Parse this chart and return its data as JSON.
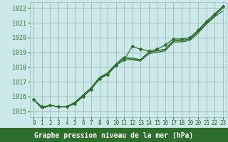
{
  "title": "Graphe pression niveau de la mer (hPa)",
  "bg_color": "#cce8e8",
  "plot_bg_color": "#cce8e8",
  "bottom_bar_color": "#2d6e2d",
  "grid_color": "#99bbbb",
  "line_color": "#2d6e2d",
  "xlim": [
    -0.5,
    23.5
  ],
  "ylim": [
    1014.6,
    1022.4
  ],
  "yticks": [
    1015,
    1016,
    1017,
    1018,
    1019,
    1020,
    1021,
    1022
  ],
  "xticks": [
    0,
    1,
    2,
    3,
    4,
    5,
    6,
    7,
    8,
    9,
    10,
    11,
    12,
    13,
    14,
    15,
    16,
    17,
    18,
    19,
    20,
    21,
    22,
    23
  ],
  "series": [
    [
      1015.8,
      1015.3,
      1015.4,
      1015.3,
      1015.3,
      1015.5,
      1016.0,
      1016.5,
      1017.2,
      1017.5,
      1018.1,
      1018.5,
      1019.4,
      1019.2,
      1019.1,
      1019.2,
      1019.5,
      1019.9,
      1019.9,
      1020.0,
      1020.5,
      1021.1,
      1021.6,
      1022.1
    ],
    [
      1015.8,
      1015.2,
      1015.4,
      1015.3,
      1015.3,
      1015.6,
      1016.0,
      1016.5,
      1017.2,
      1017.6,
      1018.2,
      1018.7,
      1018.5,
      1018.5,
      1019.0,
      1019.1,
      1019.2,
      1019.8,
      1019.8,
      1019.9,
      1020.4,
      1021.0,
      1021.5,
      1022.0
    ],
    [
      1015.8,
      1015.2,
      1015.4,
      1015.3,
      1015.3,
      1015.6,
      1016.1,
      1016.6,
      1017.2,
      1017.5,
      1018.1,
      1018.5,
      1018.5,
      1018.4,
      1018.9,
      1019.0,
      1019.1,
      1019.7,
      1019.7,
      1019.8,
      1020.3,
      1020.9,
      1021.4,
      1021.8
    ],
    [
      1015.8,
      1015.2,
      1015.4,
      1015.3,
      1015.3,
      1015.6,
      1016.1,
      1016.6,
      1017.3,
      1017.6,
      1018.2,
      1018.6,
      1018.6,
      1018.5,
      1019.0,
      1019.1,
      1019.2,
      1019.8,
      1019.8,
      1019.9,
      1020.4,
      1021.0,
      1021.5,
      1022.1
    ]
  ],
  "marker_idx": 0,
  "title_fontsize": 7,
  "ytick_fontsize": 6,
  "xtick_fontsize": 5.5
}
